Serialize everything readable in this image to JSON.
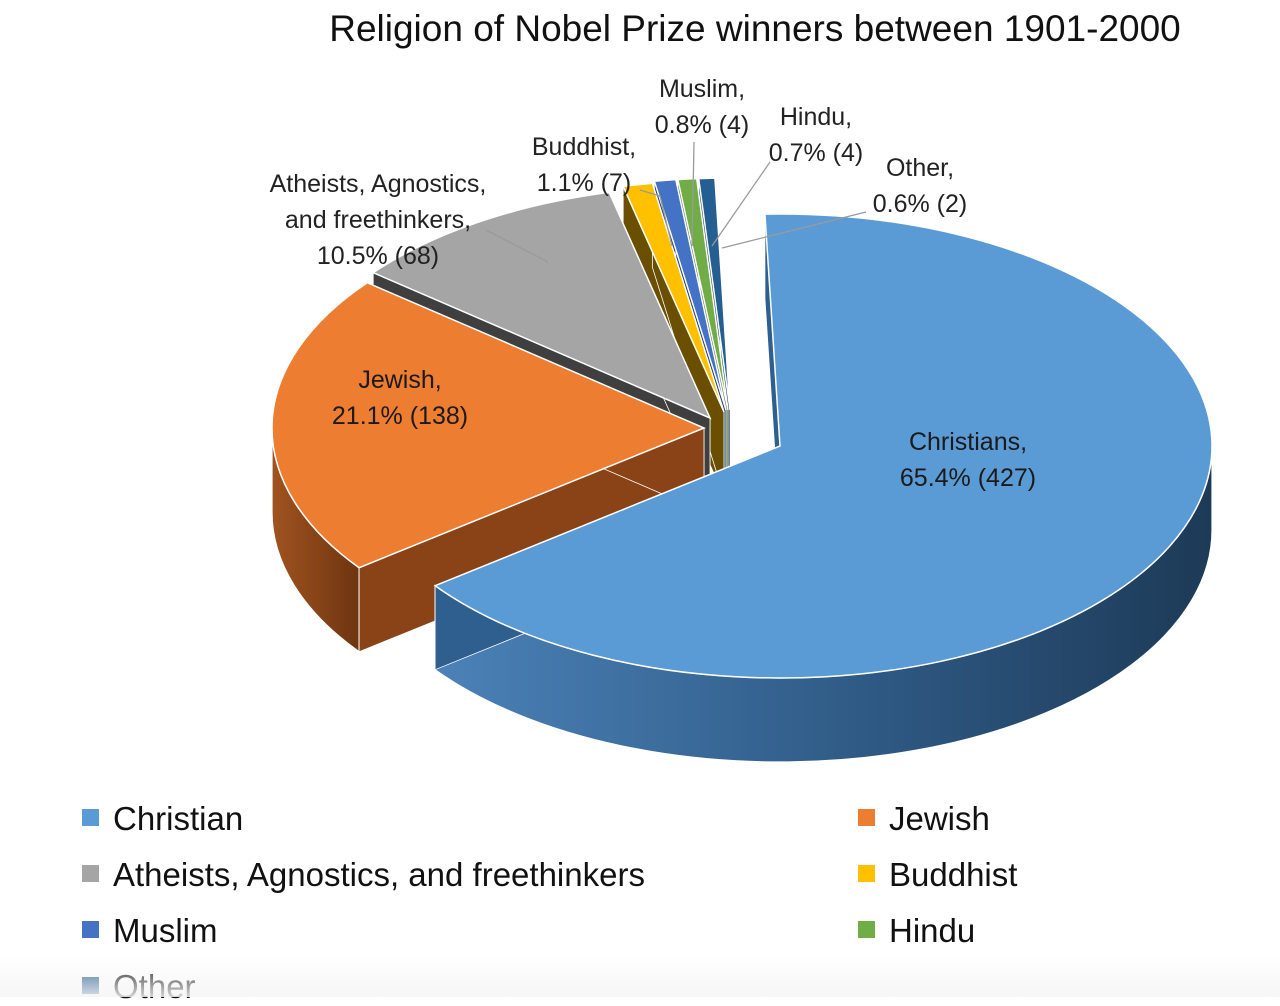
{
  "chart_data": {
    "type": "pie",
    "title": "Religion of Nobel Prize winners between 1901-2000",
    "slices": [
      {
        "key": "christian",
        "legend": "Christian",
        "label": [
          "Christians,",
          "65.4% (427)"
        ],
        "percent": 65.4,
        "count": 427,
        "color": "#5b9bd5",
        "dark": "#2e5f8f"
      },
      {
        "key": "jewish",
        "legend": "Jewish",
        "label": [
          "Jewish,",
          "21.1% (138)"
        ],
        "percent": 21.1,
        "count": 138,
        "color": "#ed7d31",
        "dark": "#8a4316"
      },
      {
        "key": "atheist",
        "legend": "Atheists, Agnostics, and freethinkers",
        "label": [
          "Atheists, Agnostics,",
          "and freethinkers,",
          "10.5% (68)"
        ],
        "percent": 10.5,
        "count": 68,
        "color": "#a5a5a5",
        "dark": "#3f3f3f"
      },
      {
        "key": "buddhist",
        "legend": "Buddhist",
        "label": [
          "Buddhist,",
          "1.1% (7)"
        ],
        "percent": 1.1,
        "count": 7,
        "color": "#ffc000",
        "dark": "#6b4f00"
      },
      {
        "key": "muslim",
        "legend": "Muslim",
        "label": [
          "Muslim,",
          "0.8% (4)"
        ],
        "percent": 0.8,
        "count": 4,
        "color": "#4472c4",
        "dark": "#1f3a6e"
      },
      {
        "key": "hindu",
        "legend": "Hindu",
        "label": [
          "Hindu,",
          "0.7% (4)"
        ],
        "percent": 0.7,
        "count": 4,
        "color": "#70ad47",
        "dark": "#3a6324"
      },
      {
        "key": "other",
        "legend": "Other",
        "label": [
          "Other,",
          "0.6% (2)"
        ],
        "percent": 0.6,
        "count": 2,
        "color": "#255e91",
        "dark": "#0f2b45"
      }
    ],
    "legend_position": "bottom",
    "style": "3d-exploded"
  }
}
